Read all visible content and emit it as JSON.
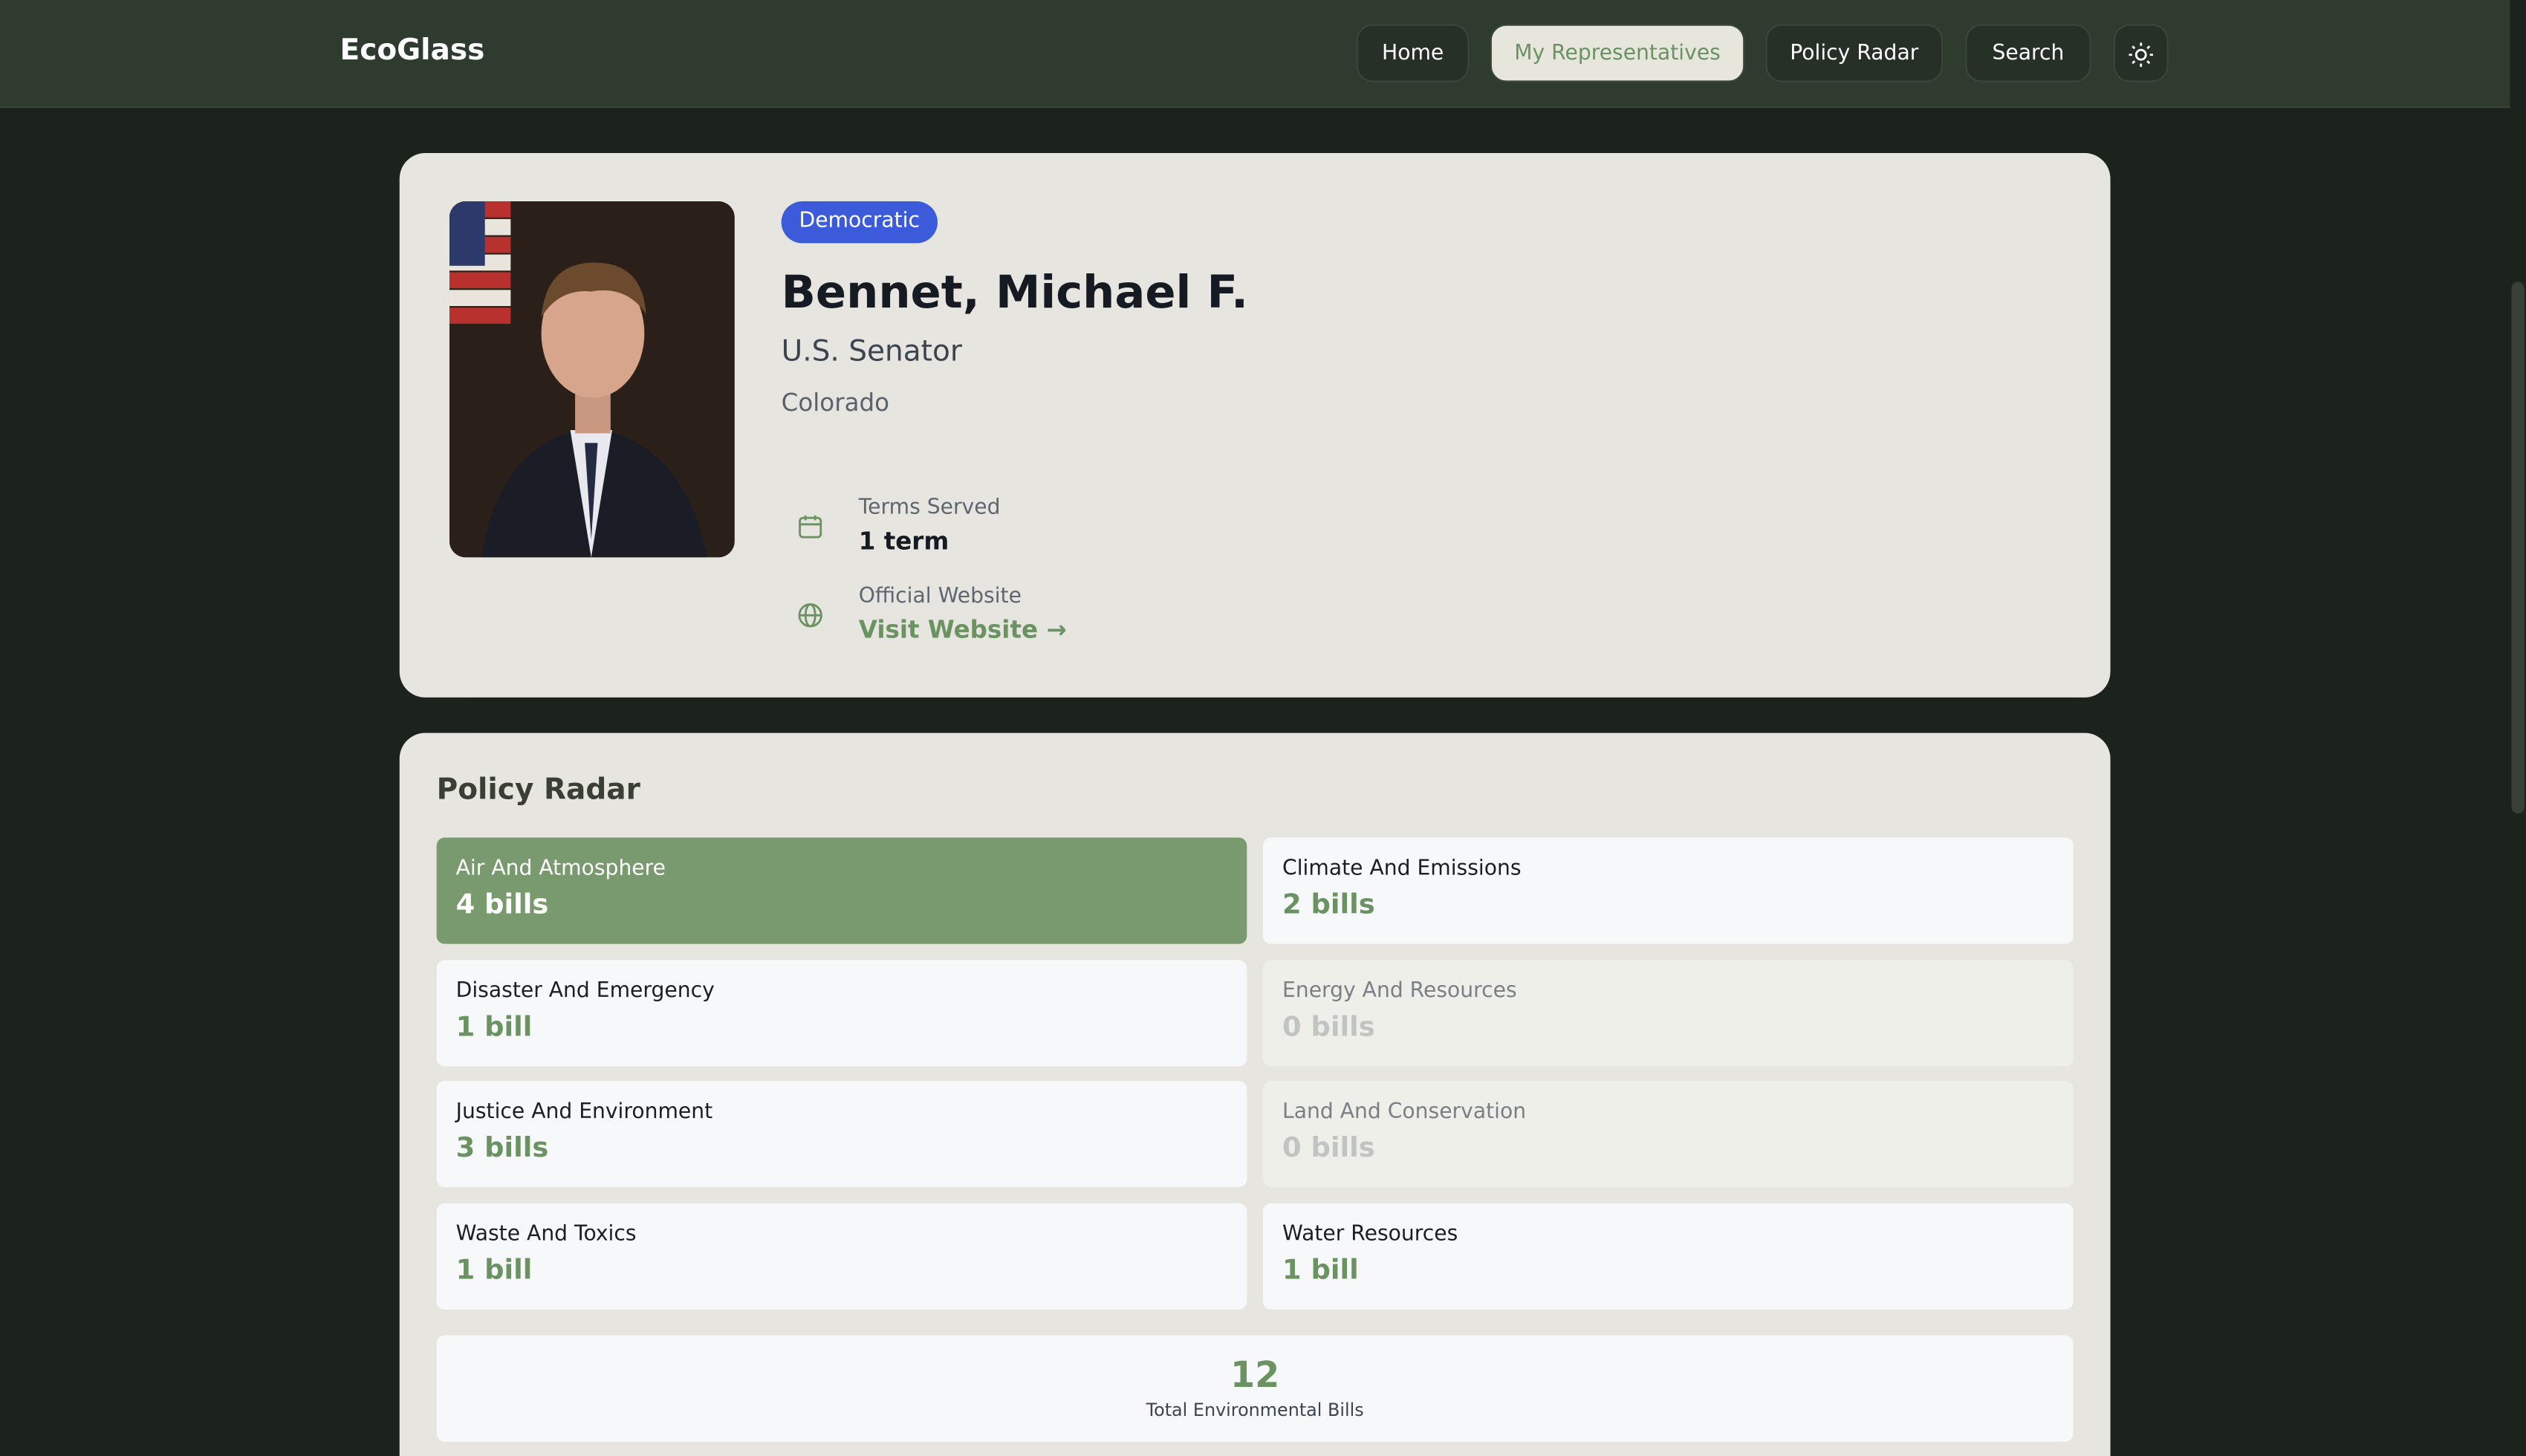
{
  "nav": {
    "brand": "EcoGlass",
    "items": [
      "Home",
      "My Representatives",
      "Policy Radar",
      "Search"
    ]
  },
  "profile": {
    "party": "Democratic",
    "name": "Bennet, Michael F.",
    "role": "U.S. Senator",
    "state": "Colorado",
    "terms_label": "Terms Served",
    "terms_value": "1 term",
    "website_label": "Official Website",
    "website_link": "Visit Website →"
  },
  "policy_radar": {
    "title": "Policy Radar",
    "items": [
      {
        "name": "Air And Atmosphere",
        "count": "4 bills"
      },
      {
        "name": "Climate And Emissions",
        "count": "2 bills"
      },
      {
        "name": "Disaster And Emergency",
        "count": "1 bill"
      },
      {
        "name": "Energy And Resources",
        "count": "0 bills"
      },
      {
        "name": "Justice And Environment",
        "count": "3 bills"
      },
      {
        "name": "Land And Conservation",
        "count": "0 bills"
      },
      {
        "name": "Waste And Toxics",
        "count": "1 bill"
      },
      {
        "name": "Water Resources",
        "count": "1 bill"
      }
    ],
    "total": "12",
    "total_label": "Total Environmental Bills"
  }
}
